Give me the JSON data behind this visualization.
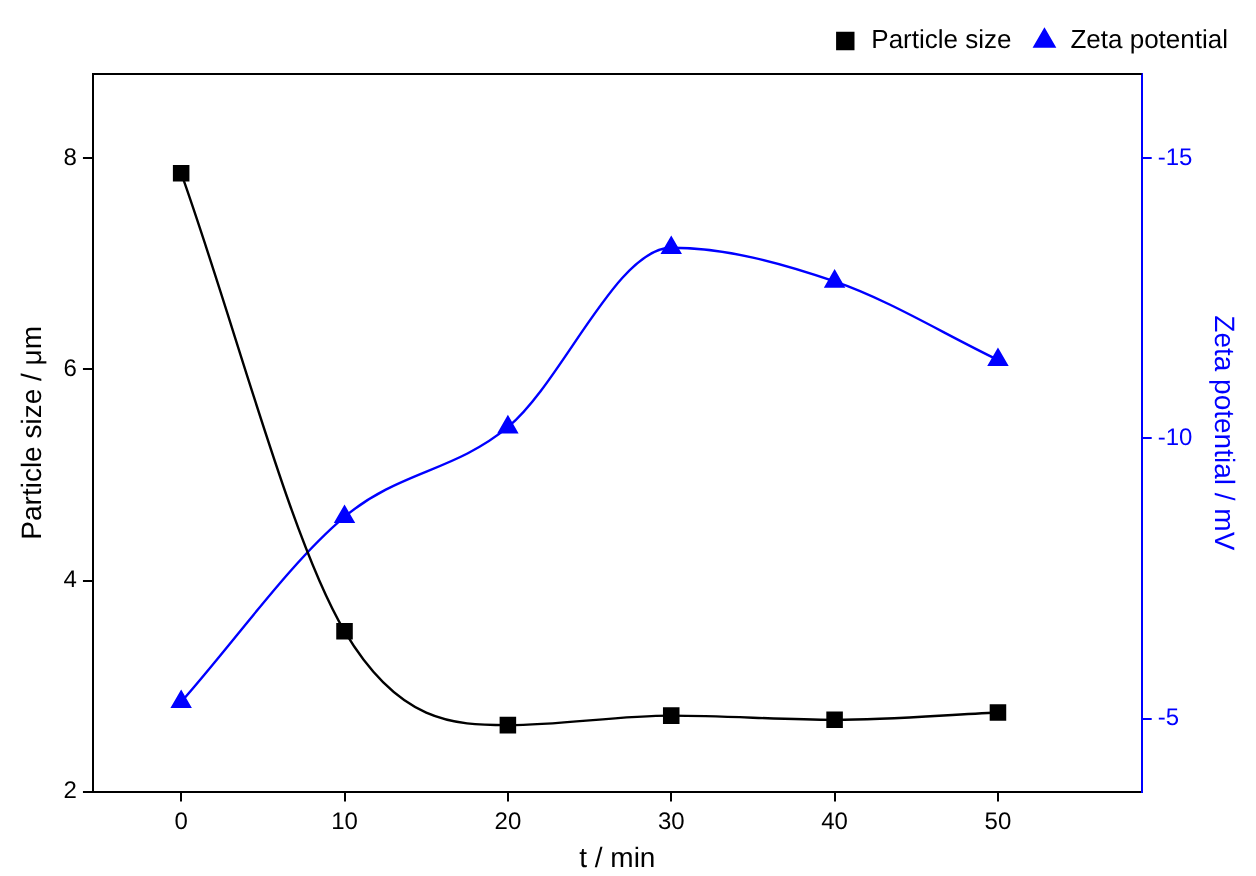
{
  "chart_data": {
    "type": "line",
    "xlabel": "t / min",
    "ylabel": "Particle size / μm",
    "y2label": "Zeta potential / mV",
    "x": [
      0,
      10,
      20,
      30,
      40,
      50
    ],
    "series": [
      {
        "name": "Particle size",
        "color": "#000000",
        "marker": "square",
        "values": [
          7.86,
          3.52,
          2.63,
          2.72,
          2.68,
          2.75
        ]
      },
      {
        "name": "Zeta potential",
        "color": "#0000ff",
        "marker": "triangle",
        "axis": "y2",
        "values": [
          -5.3,
          -8.6,
          -10.2,
          -13.4,
          -12.8,
          -11.4
        ]
      }
    ],
    "xlim": [
      -5.4,
      58.8
    ],
    "xticks": [
      0,
      10,
      20,
      30,
      40,
      50
    ],
    "ylim": [
      2,
      8.8
    ],
    "yticks": [
      2,
      4,
      6,
      8
    ],
    "y2lim": [
      -3.7,
      -16.5
    ],
    "y2ticks": [
      -5,
      -10,
      -15
    ],
    "legend": "top right",
    "grid": false
  }
}
